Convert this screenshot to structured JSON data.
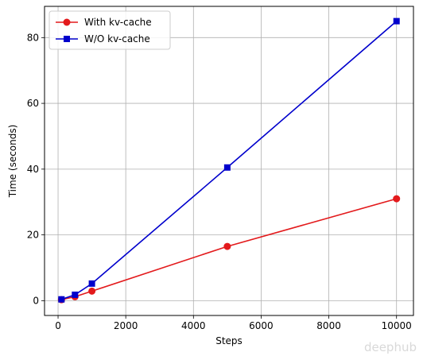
{
  "chart_data": {
    "type": "line",
    "title": "",
    "xlabel": "Steps",
    "ylabel": "Time (seconds)",
    "xlim": [
      -400,
      10500
    ],
    "ylim": [
      -4.5,
      89.5
    ],
    "xticks": [
      0,
      2000,
      4000,
      6000,
      8000,
      10000
    ],
    "yticks": [
      0,
      20,
      40,
      60,
      80
    ],
    "grid": true,
    "legend_position": "top-left",
    "series": [
      {
        "name": "With kv-cache",
        "color": "#e31a1c",
        "marker": "circle",
        "x": [
          100,
          500,
          1000,
          5000,
          10000
        ],
        "y": [
          0.3,
          1.2,
          2.9,
          16.5,
          31.0
        ]
      },
      {
        "name": "W/O kv-cache",
        "color": "#0000cc",
        "marker": "square",
        "x": [
          100,
          500,
          1000,
          5000,
          10000
        ],
        "y": [
          0.4,
          1.8,
          5.2,
          40.5,
          85.0
        ]
      }
    ]
  },
  "watermark": "deephub"
}
